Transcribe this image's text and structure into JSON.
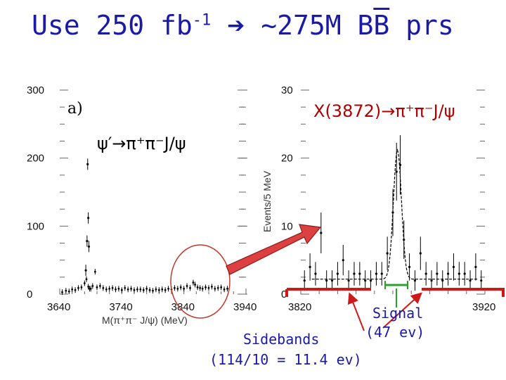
{
  "header": {
    "title_prefix": "Use 250 fb",
    "title_exp": "-1",
    "title_arrow": "➔",
    "title_rest_pre": "~275M B",
    "title_bar": "B",
    "title_rest_post": " prs"
  },
  "chart_data": [
    {
      "type": "scatter",
      "panel_label": "a)",
      "decay_label": "ψ′→π⁺π⁻J/ψ",
      "xlabel": "M(π⁺π⁻ J/ψ) (MeV)",
      "ylabel": "",
      "xlim": [
        3640,
        3940
      ],
      "ylim": [
        0,
        300
      ],
      "x_ticks": [
        "3640",
        "3740",
        "3840",
        "3940"
      ],
      "y_ticks": [
        "0",
        "100",
        "200",
        "300"
      ],
      "points": [
        [
          3644,
          3
        ],
        [
          3650,
          5
        ],
        [
          3655,
          4
        ],
        [
          3660,
          7
        ],
        [
          3665,
          6
        ],
        [
          3670,
          9
        ],
        [
          3675,
          10
        ],
        [
          3680,
          16
        ],
        [
          3683,
          22
        ],
        [
          3686,
          11
        ],
        [
          3688,
          8
        ],
        [
          3690,
          8
        ],
        [
          3693,
          12
        ],
        [
          3697,
          33
        ],
        [
          3700,
          10
        ],
        [
          3705,
          12
        ],
        [
          3710,
          9
        ],
        [
          3715,
          7
        ],
        [
          3720,
          8
        ],
        [
          3725,
          9
        ],
        [
          3730,
          7
        ],
        [
          3735,
          8
        ],
        [
          3740,
          6
        ],
        [
          3745,
          9
        ],
        [
          3750,
          7
        ],
        [
          3755,
          8
        ],
        [
          3760,
          6
        ],
        [
          3765,
          7
        ],
        [
          3770,
          7
        ],
        [
          3775,
          6
        ],
        [
          3780,
          8
        ],
        [
          3785,
          6
        ],
        [
          3790,
          5
        ],
        [
          3795,
          7
        ],
        [
          3800,
          6
        ],
        [
          3805,
          7
        ],
        [
          3810,
          6
        ],
        [
          3815,
          8
        ],
        [
          3820,
          7
        ],
        [
          3825,
          9
        ],
        [
          3830,
          8
        ],
        [
          3835,
          10
        ],
        [
          3840,
          8
        ],
        [
          3845,
          12
        ],
        [
          3850,
          9
        ],
        [
          3855,
          17
        ],
        [
          3858,
          14
        ],
        [
          3862,
          10
        ],
        [
          3866,
          9
        ],
        [
          3870,
          8
        ],
        [
          3875,
          10
        ],
        [
          3880,
          9
        ],
        [
          3885,
          11
        ],
        [
          3890,
          8
        ],
        [
          3895,
          9
        ],
        [
          3900,
          10
        ],
        [
          3905,
          7
        ],
        [
          3910,
          8
        ]
      ],
      "psi_peak": [
        [
          3682,
          35
        ],
        [
          3684,
          78
        ],
        [
          3685,
          191
        ],
        [
          3686,
          112
        ],
        [
          3687,
          70
        ]
      ],
      "highlight": "circle around X(3872) region"
    },
    {
      "type": "scatter",
      "decay_label": "X(3872)→π⁺π⁻J/ψ",
      "ylabel": "Events/5 MeV",
      "xlabel": "",
      "xlim": [
        3820,
        3920
      ],
      "ylim": [
        0,
        30
      ],
      "x_ticks": [
        "3820",
        "3920"
      ],
      "y_ticks": [
        "0",
        "10",
        "20",
        "30"
      ],
      "points": [
        [
          3822,
          2
        ],
        [
          3825,
          4
        ],
        [
          3828,
          3
        ],
        [
          3831,
          9
        ],
        [
          3834,
          2
        ],
        [
          3837,
          2
        ],
        [
          3840,
          3
        ],
        [
          3843,
          5
        ],
        [
          3846,
          2
        ],
        [
          3849,
          3
        ],
        [
          3852,
          3
        ],
        [
          3855,
          2
        ],
        [
          3858,
          2
        ],
        [
          3861,
          3
        ],
        [
          3864,
          3
        ],
        [
          3867,
          6
        ],
        [
          3870,
          12
        ],
        [
          3872,
          18
        ],
        [
          3874,
          19
        ],
        [
          3876,
          8
        ],
        [
          3879,
          4
        ],
        [
          3882,
          2
        ],
        [
          3885,
          6
        ],
        [
          3888,
          3
        ],
        [
          3891,
          2
        ],
        [
          3894,
          3
        ],
        [
          3897,
          2
        ],
        [
          3900,
          3
        ],
        [
          3903,
          4
        ],
        [
          3906,
          3
        ],
        [
          3909,
          3
        ],
        [
          3912,
          2
        ],
        [
          3915,
          4
        ],
        [
          3918,
          2
        ]
      ],
      "fit": "gaussian peak near 3872 on flat background"
    }
  ],
  "annotations": {
    "signal": "Signal",
    "signal_count": "(47 ev)",
    "sidebands": "Sidebands",
    "sidebands_count": "(114/10 = 11.4 ev)"
  },
  "colors": {
    "title": "#1a1aa6",
    "decay_x": "#b00000",
    "band_bar": "#cc1a1a",
    "signal_bar": "#2ca02c",
    "big_arrow": "#dc4040",
    "circle": "#c0392b"
  }
}
